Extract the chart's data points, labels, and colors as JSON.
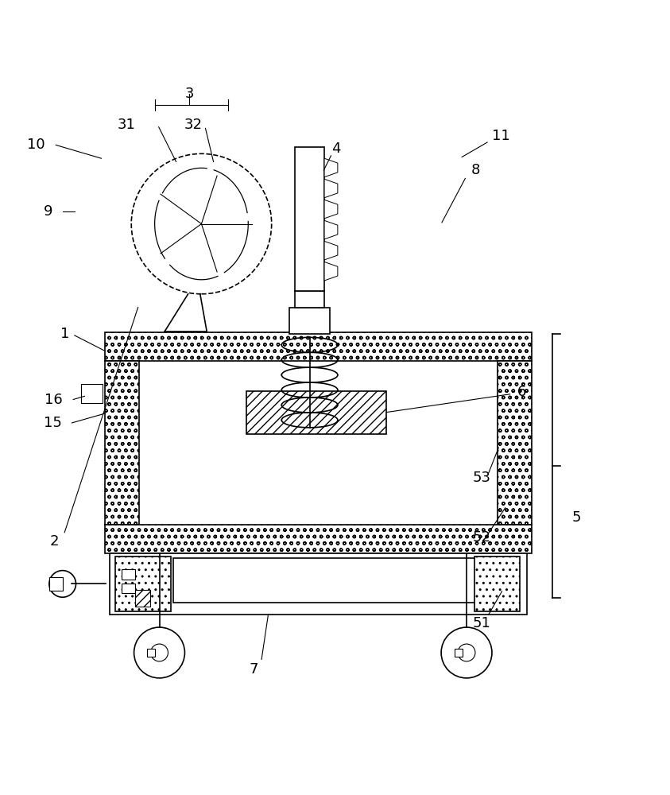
{
  "bg_color": "#ffffff",
  "line_color": "#000000",
  "figsize": [
    8.43,
    10.0
  ],
  "dpi": 100
}
